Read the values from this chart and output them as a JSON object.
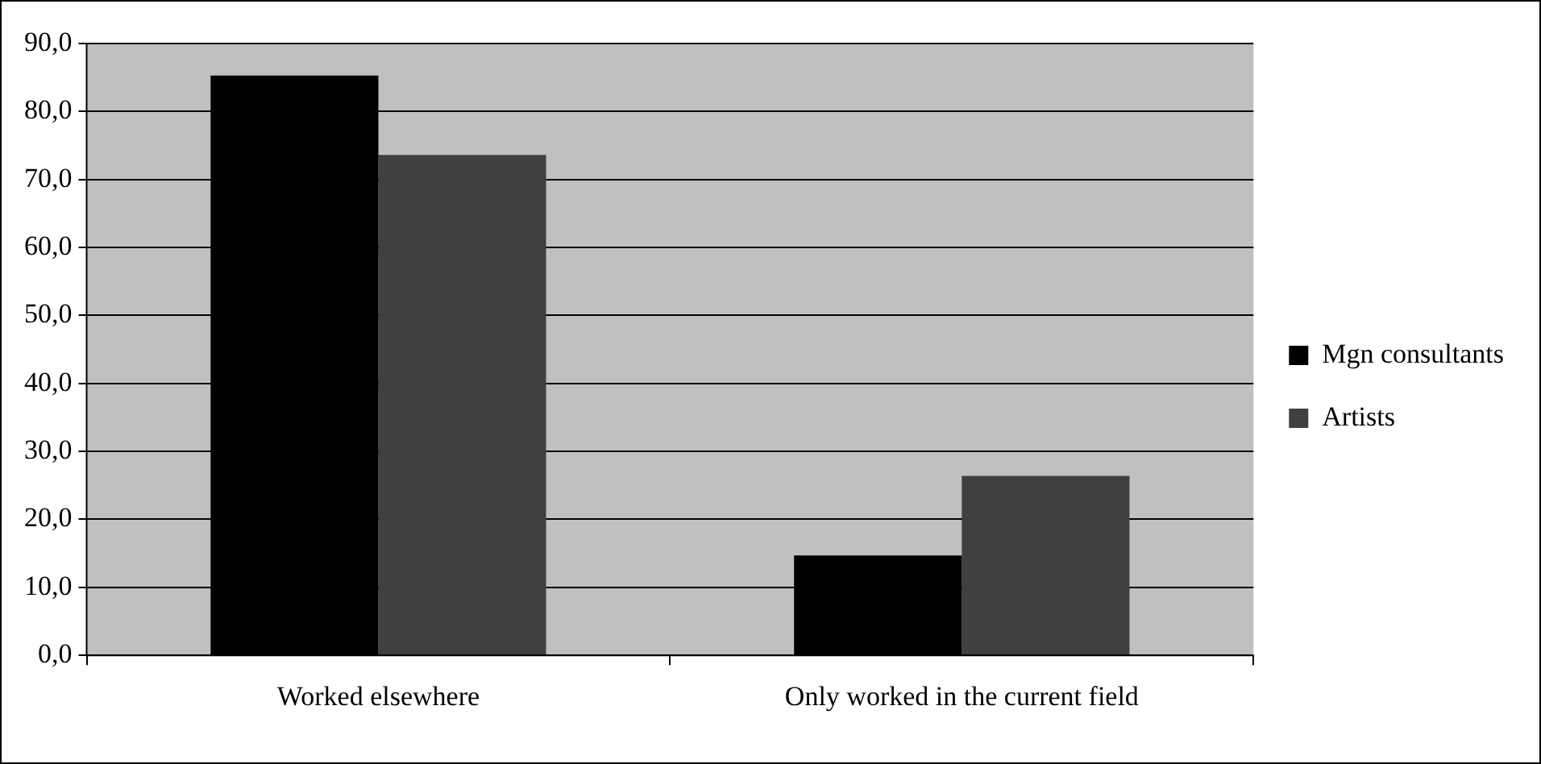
{
  "chart_data": {
    "type": "bar",
    "categories": [
      "Worked elsewhere",
      "Only worked in the current field"
    ],
    "series": [
      {
        "name": "Mgn consultants",
        "color": "#000000",
        "values": [
          85.3,
          14.7
        ]
      },
      {
        "name": "Artists",
        "color": "#404040",
        "values": [
          73.6,
          26.4
        ]
      }
    ],
    "ylim": [
      0,
      90
    ],
    "yticks": [
      {
        "value": 0,
        "label": "0,0"
      },
      {
        "value": 10,
        "label": "10,0"
      },
      {
        "value": 20,
        "label": "20,0"
      },
      {
        "value": 30,
        "label": "30,0"
      },
      {
        "value": 40,
        "label": "40,0"
      },
      {
        "value": 50,
        "label": "50,0"
      },
      {
        "value": 60,
        "label": "60,0"
      },
      {
        "value": 70,
        "label": "70,0"
      },
      {
        "value": 80,
        "label": "80,0"
      },
      {
        "value": 90,
        "label": "90,0"
      }
    ],
    "grid": "y",
    "legend": "right"
  }
}
